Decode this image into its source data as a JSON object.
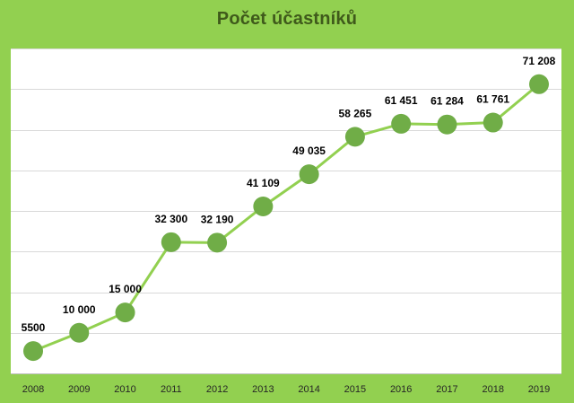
{
  "chart_data": {
    "type": "line",
    "title": "Počet účastníků",
    "categories": [
      "2008",
      "2009",
      "2010",
      "2011",
      "2012",
      "2013",
      "2014",
      "2015",
      "2016",
      "2017",
      "2018",
      "2019"
    ],
    "series": [
      {
        "values": [
          5500,
          10000,
          15000,
          32300,
          32190,
          41109,
          49035,
          58265,
          61451,
          61284,
          61761,
          71208
        ],
        "labels": [
          "5500",
          "10 000",
          "15 000",
          "32 300",
          "32 190",
          "41 109",
          "49 035",
          "58 265",
          "61 451",
          "61 284",
          "61 761",
          "71 208"
        ]
      }
    ],
    "ylim": [
      0,
      80000
    ],
    "grid": true,
    "legend": "none",
    "colors": {
      "background": "#92d050",
      "plot": "#ffffff",
      "line": "#92d050",
      "marker": "#70ad47",
      "grid": "#d9d9d9",
      "title": "#3f5a1b",
      "label": "#000000"
    }
  }
}
